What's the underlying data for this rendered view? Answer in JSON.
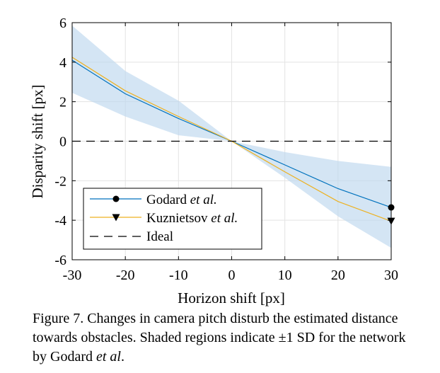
{
  "chart_data": {
    "type": "line",
    "xlabel": "Horizon shift [px]",
    "ylabel": "Disparity shift [px]",
    "xlim": [
      -30,
      30
    ],
    "ylim": [
      -6,
      6
    ],
    "x_ticks": [
      "-30",
      "-20",
      "-10",
      "0",
      "10",
      "20",
      "30"
    ],
    "y_ticks": [
      "6",
      "4",
      "2",
      "0",
      "-2",
      "-4",
      "-6"
    ],
    "grid": true,
    "legend_position": "bottom-left",
    "series": [
      {
        "name": "Godard",
        "name_suffix": "et al.",
        "color": "#0072BD",
        "marker": "circle",
        "x": [
          -30,
          -20,
          -10,
          0,
          10,
          20,
          30
        ],
        "y": [
          4.1,
          2.4,
          1.15,
          0.0,
          -1.2,
          -2.4,
          -3.35
        ],
        "band_lower": [
          2.45,
          1.25,
          0.3,
          0.0,
          -0.55,
          -1.0,
          -1.3
        ],
        "band_upper": [
          5.85,
          3.55,
          2.05,
          0.0,
          -1.85,
          -3.8,
          -5.4
        ]
      },
      {
        "name": "Kuznietsov",
        "name_suffix": "et al.",
        "color": "#EDB120",
        "marker": "triangle-down",
        "x": [
          -30,
          -20,
          -10,
          0,
          10,
          20,
          30
        ],
        "y": [
          4.25,
          2.55,
          1.25,
          0.0,
          -1.55,
          -3.05,
          -4.05
        ]
      },
      {
        "name": "Ideal",
        "color": "#000000",
        "style": "dashed",
        "x": [
          -30,
          30
        ],
        "y": [
          0,
          0
        ]
      }
    ],
    "band_color": "#BDD7EE"
  },
  "caption": {
    "line1": "Figure 7. Changes in camera pitch disturb the estimated distance",
    "line2": "towards obstacles. Shaded regions indicate ±1 SD for the network",
    "line3_prefix": "by Godard",
    "line3_italic": "et al",
    "line3_suffix": "."
  }
}
